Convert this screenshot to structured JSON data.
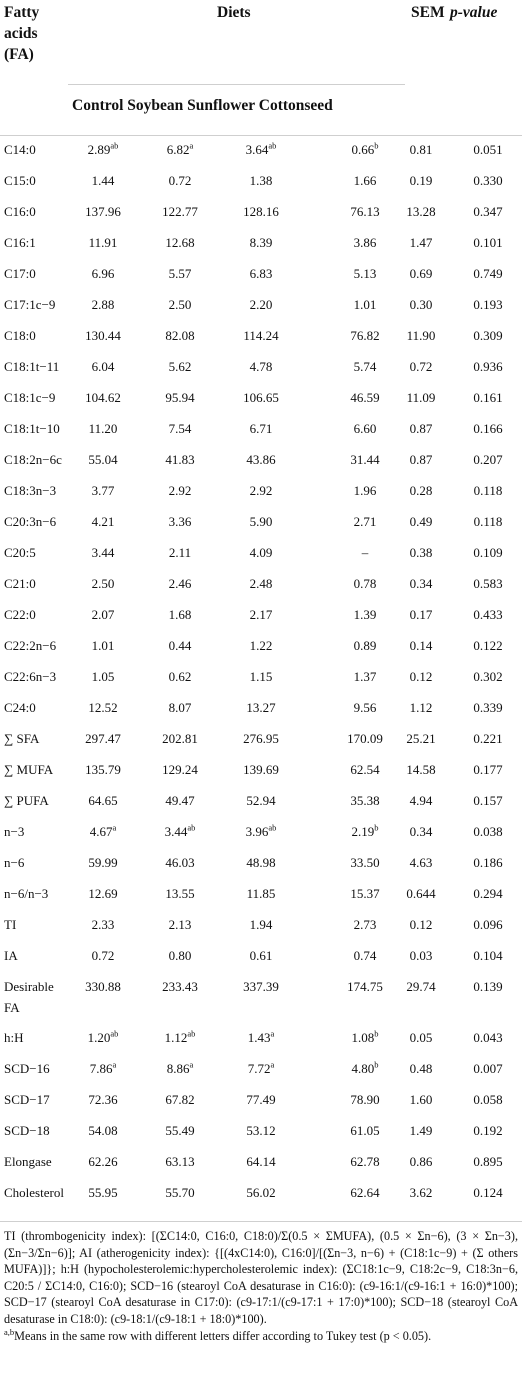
{
  "header": {
    "col_fa": [
      "Fatty",
      "acids",
      "(FA)"
    ],
    "diets": "Diets",
    "sem": "SEM",
    "pvalue": "p-value",
    "subheaders": "Control Soybean Sunflower Cottonseed"
  },
  "rows": [
    {
      "fa": "C14:0",
      "control": "2.89",
      "control_sup": "ab",
      "soybean": "6.82",
      "soybean_sup": "a",
      "sunflower": "3.64",
      "sunflower_sup": "ab",
      "cottonseed": "0.66",
      "cottonseed_sup": "b",
      "sem": "0.81",
      "p": "0.051"
    },
    {
      "fa": "C15:0",
      "control": "1.44",
      "soybean": "0.72",
      "sunflower": "1.38",
      "cottonseed": "1.66",
      "sem": "0.19",
      "p": "0.330"
    },
    {
      "fa": "C16:0",
      "control": "137.96",
      "soybean": "122.77",
      "sunflower": "128.16",
      "cottonseed": "76.13",
      "sem": "13.28",
      "p": "0.347"
    },
    {
      "fa": "C16:1",
      "control": "11.91",
      "soybean": "12.68",
      "sunflower": "8.39",
      "cottonseed": "3.86",
      "sem": "1.47",
      "p": "0.101"
    },
    {
      "fa": "C17:0",
      "control": "6.96",
      "soybean": "5.57",
      "sunflower": "6.83",
      "cottonseed": "5.13",
      "sem": "0.69",
      "p": "0.749"
    },
    {
      "fa": "C17:1c−9",
      "control": "2.88",
      "soybean": "2.50",
      "sunflower": "2.20",
      "cottonseed": "1.01",
      "sem": "0.30",
      "p": "0.193"
    },
    {
      "fa": "C18:0",
      "control": "130.44",
      "soybean": "82.08",
      "sunflower": "114.24",
      "cottonseed": "76.82",
      "sem": "11.90",
      "p": "0.309"
    },
    {
      "fa": "C18:1t−11",
      "control": "6.04",
      "soybean": "5.62",
      "sunflower": "4.78",
      "cottonseed": "5.74",
      "sem": "0.72",
      "p": "0.936"
    },
    {
      "fa": "C18:1c−9",
      "control": "104.62",
      "soybean": "95.94",
      "sunflower": "106.65",
      "cottonseed": "46.59",
      "sem": "11.09",
      "p": "0.161"
    },
    {
      "fa": "C18:1t−10",
      "control": "11.20",
      "soybean": "7.54",
      "sunflower": "6.71",
      "cottonseed": "6.60",
      "sem": "0.87",
      "p": "0.166"
    },
    {
      "fa": "C18:2n−6c",
      "control": "55.04",
      "soybean": "41.83",
      "sunflower": "43.86",
      "cottonseed": "31.44",
      "sem": "0.87",
      "p": "0.207"
    },
    {
      "fa": "C18:3n−3",
      "control": "3.77",
      "soybean": "2.92",
      "sunflower": "2.92",
      "cottonseed": "1.96",
      "sem": "0.28",
      "p": "0.118"
    },
    {
      "fa": "C20:3n−6",
      "control": "4.21",
      "soybean": "3.36",
      "sunflower": "5.90",
      "cottonseed": "2.71",
      "sem": "0.49",
      "p": "0.118"
    },
    {
      "fa": "C20:5",
      "control": "3.44",
      "soybean": "2.11",
      "sunflower": "4.09",
      "cottonseed": "–",
      "sem": "0.38",
      "p": "0.109"
    },
    {
      "fa": "C21:0",
      "control": "2.50",
      "soybean": "2.46",
      "sunflower": "2.48",
      "cottonseed": "0.78",
      "sem": "0.34",
      "p": "0.583"
    },
    {
      "fa": "C22:0",
      "control": "2.07",
      "soybean": "1.68",
      "sunflower": "2.17",
      "cottonseed": "1.39",
      "sem": "0.17",
      "p": "0.433"
    },
    {
      "fa": "C22:2n−6",
      "control": "1.01",
      "soybean": "0.44",
      "sunflower": "1.22",
      "cottonseed": "0.89",
      "sem": "0.14",
      "p": "0.122"
    },
    {
      "fa": "C22:6n−3",
      "control": "1.05",
      "soybean": "0.62",
      "sunflower": "1.15",
      "cottonseed": "1.37",
      "sem": "0.12",
      "p": "0.302"
    },
    {
      "fa": "C24:0",
      "control": "12.52",
      "soybean": "8.07",
      "sunflower": "13.27",
      "cottonseed": "9.56",
      "sem": "1.12",
      "p": "0.339"
    },
    {
      "fa": "∑ SFA",
      "control": "297.47",
      "soybean": "202.81",
      "sunflower": "276.95",
      "cottonseed": "170.09",
      "sem": "25.21",
      "p": "0.221"
    },
    {
      "fa": "∑ MUFA",
      "control": "135.79",
      "soybean": "129.24",
      "sunflower": "139.69",
      "cottonseed": "62.54",
      "sem": "14.58",
      "p": "0.177"
    },
    {
      "fa": "∑ PUFA",
      "control": "64.65",
      "soybean": "49.47",
      "sunflower": "52.94",
      "cottonseed": "35.38",
      "sem": "4.94",
      "p": "0.157"
    },
    {
      "fa": "n−3",
      "control": "4.67",
      "control_sup": "a",
      "soybean": "3.44",
      "soybean_sup": "ab",
      "sunflower": "3.96",
      "sunflower_sup": "ab",
      "cottonseed": "2.19",
      "cottonseed_sup": "b",
      "sem": "0.34",
      "p": "0.038"
    },
    {
      "fa": "n−6",
      "control": "59.99",
      "soybean": "46.03",
      "sunflower": "48.98",
      "cottonseed": "33.50",
      "sem": "4.63",
      "p": "0.186"
    },
    {
      "fa": "n−6/n−3",
      "control": "12.69",
      "soybean": "13.55",
      "sunflower": "11.85",
      "cottonseed": "15.37",
      "sem": "0.644",
      "p": "0.294"
    },
    {
      "fa": "TI",
      "control": "2.33",
      "soybean": "2.13",
      "sunflower": "1.94",
      "cottonseed": "2.73",
      "sem": "0.12",
      "p": "0.096"
    },
    {
      "fa": "IA",
      "control": "0.72",
      "soybean": "0.80",
      "sunflower": "0.61",
      "cottonseed": "0.74",
      "sem": "0.03",
      "p": "0.104"
    },
    {
      "fa": "Desirable",
      "fa2": "FA",
      "control": "330.88",
      "soybean": "233.43",
      "sunflower": "337.39",
      "cottonseed": "174.75",
      "sem": "29.74",
      "p": "0.139"
    },
    {
      "fa": "h:H",
      "control": "1.20",
      "control_sup": "ab",
      "soybean": "1.12",
      "soybean_sup": "ab",
      "sunflower": "1.43",
      "sunflower_sup": "a",
      "cottonseed": "1.08",
      "cottonseed_sup": "b",
      "sem": "0.05",
      "p": "0.043"
    },
    {
      "fa": "SCD−16",
      "control": "7.86",
      "control_sup": "a",
      "soybean": "8.86",
      "soybean_sup": "a",
      "sunflower": "7.72",
      "sunflower_sup": "a",
      "cottonseed": "4.80",
      "cottonseed_sup": "b",
      "sem": "0.48",
      "p": "0.007"
    },
    {
      "fa": "SCD−17",
      "control": "72.36",
      "soybean": "67.82",
      "sunflower": "77.49",
      "cottonseed": "78.90",
      "sem": "1.60",
      "p": "0.058"
    },
    {
      "fa": "SCD−18",
      "control": "54.08",
      "soybean": "55.49",
      "sunflower": "53.12",
      "cottonseed": "61.05",
      "sem": "1.49",
      "p": "0.192"
    },
    {
      "fa": "Elongase",
      "control": "62.26",
      "soybean": "63.13",
      "sunflower": "64.14",
      "cottonseed": "62.78",
      "sem": "0.86",
      "p": "0.895"
    },
    {
      "fa": "Cholesterol",
      "control": "55.95",
      "soybean": "55.70",
      "sunflower": "56.02",
      "cottonseed": "62.64",
      "sem": "3.62",
      "p": "0.124"
    }
  ],
  "footnote": {
    "text": "TI (thrombogenicity index): [(ΣC14:0, C16:0, C18:0)/Σ(0.5 × ΣMUFA), (0.5 × Σn−6), (3 × Σn−3), (Σn−3/Σn−6)]; AI (atherogenicity index): {[(4xC14:0), C16:0]/[(Σn−3, n−6) + (C18:1c−9) + (Σ others MUFA)]}; h:H (hypocholesterolemic:hypercholesterolemic index): (ΣC18:1c−9, C18:2c−9, C18:3n−6, C20:5 / ΣC14:0, C16:0); SCD−16 (stearoyl CoA desaturase in C16:0): (c9-16:1/(c9-16:1 + 16:0)*100); SCD−17 (stearoyl CoA desaturase in C17:0): (c9-17:1/(c9-17:1 + 17:0)*100); SCD−18 (stearoyl CoA desaturase in C18:0): (c9-18:1/(c9-18:1 + 18:0)*100).",
    "sig_sup": "a,b",
    "sig_text": "Means in the same row with different letters differ according to Tukey test (p < 0.05)."
  }
}
